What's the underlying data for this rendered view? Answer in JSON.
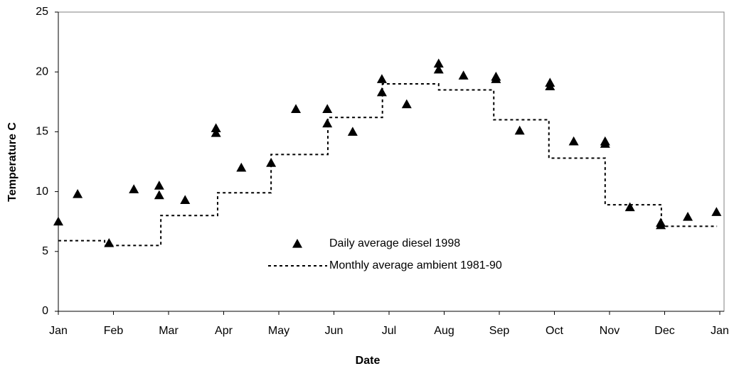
{
  "chart_data": {
    "type": "scatter",
    "xlabel": "Date",
    "ylabel": "Temperature  C",
    "xlim": [
      0,
      12
    ],
    "ylim": [
      0,
      25
    ],
    "xticks": [
      {
        "value": 0,
        "label": "Jan"
      },
      {
        "value": 1,
        "label": "Feb"
      },
      {
        "value": 2,
        "label": "Mar"
      },
      {
        "value": 3,
        "label": "Apr"
      },
      {
        "value": 4,
        "label": "May"
      },
      {
        "value": 5,
        "label": "Jun"
      },
      {
        "value": 6,
        "label": "Jul"
      },
      {
        "value": 7,
        "label": "Aug"
      },
      {
        "value": 8,
        "label": "Sep"
      },
      {
        "value": 9,
        "label": "Oct"
      },
      {
        "value": 10,
        "label": "Nov"
      },
      {
        "value": 11,
        "label": "Dec"
      },
      {
        "value": 12,
        "label": "Jan"
      }
    ],
    "yticks": [
      0,
      5,
      10,
      15,
      20,
      25
    ],
    "legend_position": "center",
    "series": [
      {
        "name": "Daily average diesel 1998",
        "color": "#000000",
        "marker": "triangle",
        "x": [
          0.0,
          0.35,
          0.92,
          1.37,
          1.83,
          1.83,
          2.3,
          2.86,
          2.86,
          3.32,
          3.86,
          4.31,
          4.88,
          4.88,
          5.34,
          5.87,
          5.87,
          6.32,
          6.9,
          6.9,
          7.35,
          7.94,
          7.94,
          8.37,
          8.92,
          8.92,
          9.35,
          9.92,
          9.92,
          10.37,
          10.93,
          10.93,
          11.42,
          11.94
        ],
        "values": [
          7.5,
          9.8,
          5.7,
          10.2,
          10.5,
          9.7,
          9.3,
          15.3,
          14.9,
          12.0,
          12.4,
          16.9,
          16.9,
          15.7,
          15.0,
          18.3,
          19.4,
          17.3,
          20.7,
          20.2,
          19.7,
          19.6,
          19.4,
          15.1,
          19.1,
          18.8,
          14.2,
          14.2,
          14.0,
          8.7,
          7.4,
          7.2,
          7.9,
          8.3
        ]
      },
      {
        "name": "Monthly average ambient 1981-90",
        "color": "#000000",
        "line": "step-dotted",
        "x": [
          0,
          0.84,
          1.86,
          2.89,
          3.86,
          4.89,
          5.88,
          6.9,
          7.9,
          8.9,
          9.92,
          10.94,
          11.95
        ],
        "values": [
          5.9,
          5.5,
          8.0,
          9.9,
          13.1,
          16.2,
          19.0,
          18.5,
          16.0,
          12.8,
          8.9,
          7.1,
          7.1
        ]
      }
    ]
  }
}
